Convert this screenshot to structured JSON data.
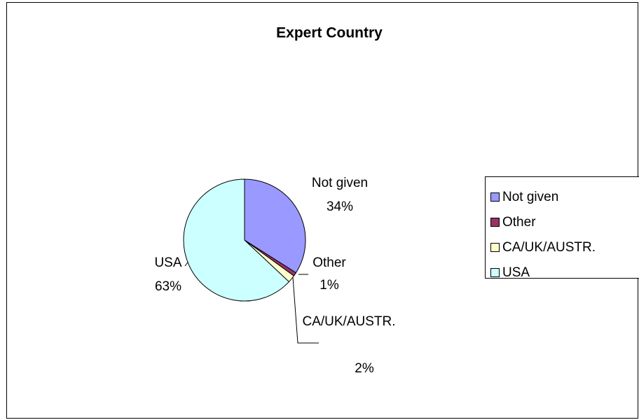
{
  "chart_data": {
    "type": "pie",
    "title": "Expert Country",
    "categories": [
      "Not given",
      "Other",
      "CA/UK/AUSTR.",
      "USA"
    ],
    "values": [
      34,
      1,
      2,
      63
    ],
    "value_labels": [
      "34%",
      "1%",
      "2%",
      "63%"
    ],
    "colors": [
      "#9999ff",
      "#993366",
      "#ffffcc",
      "#ccffff"
    ],
    "legend": "right"
  }
}
